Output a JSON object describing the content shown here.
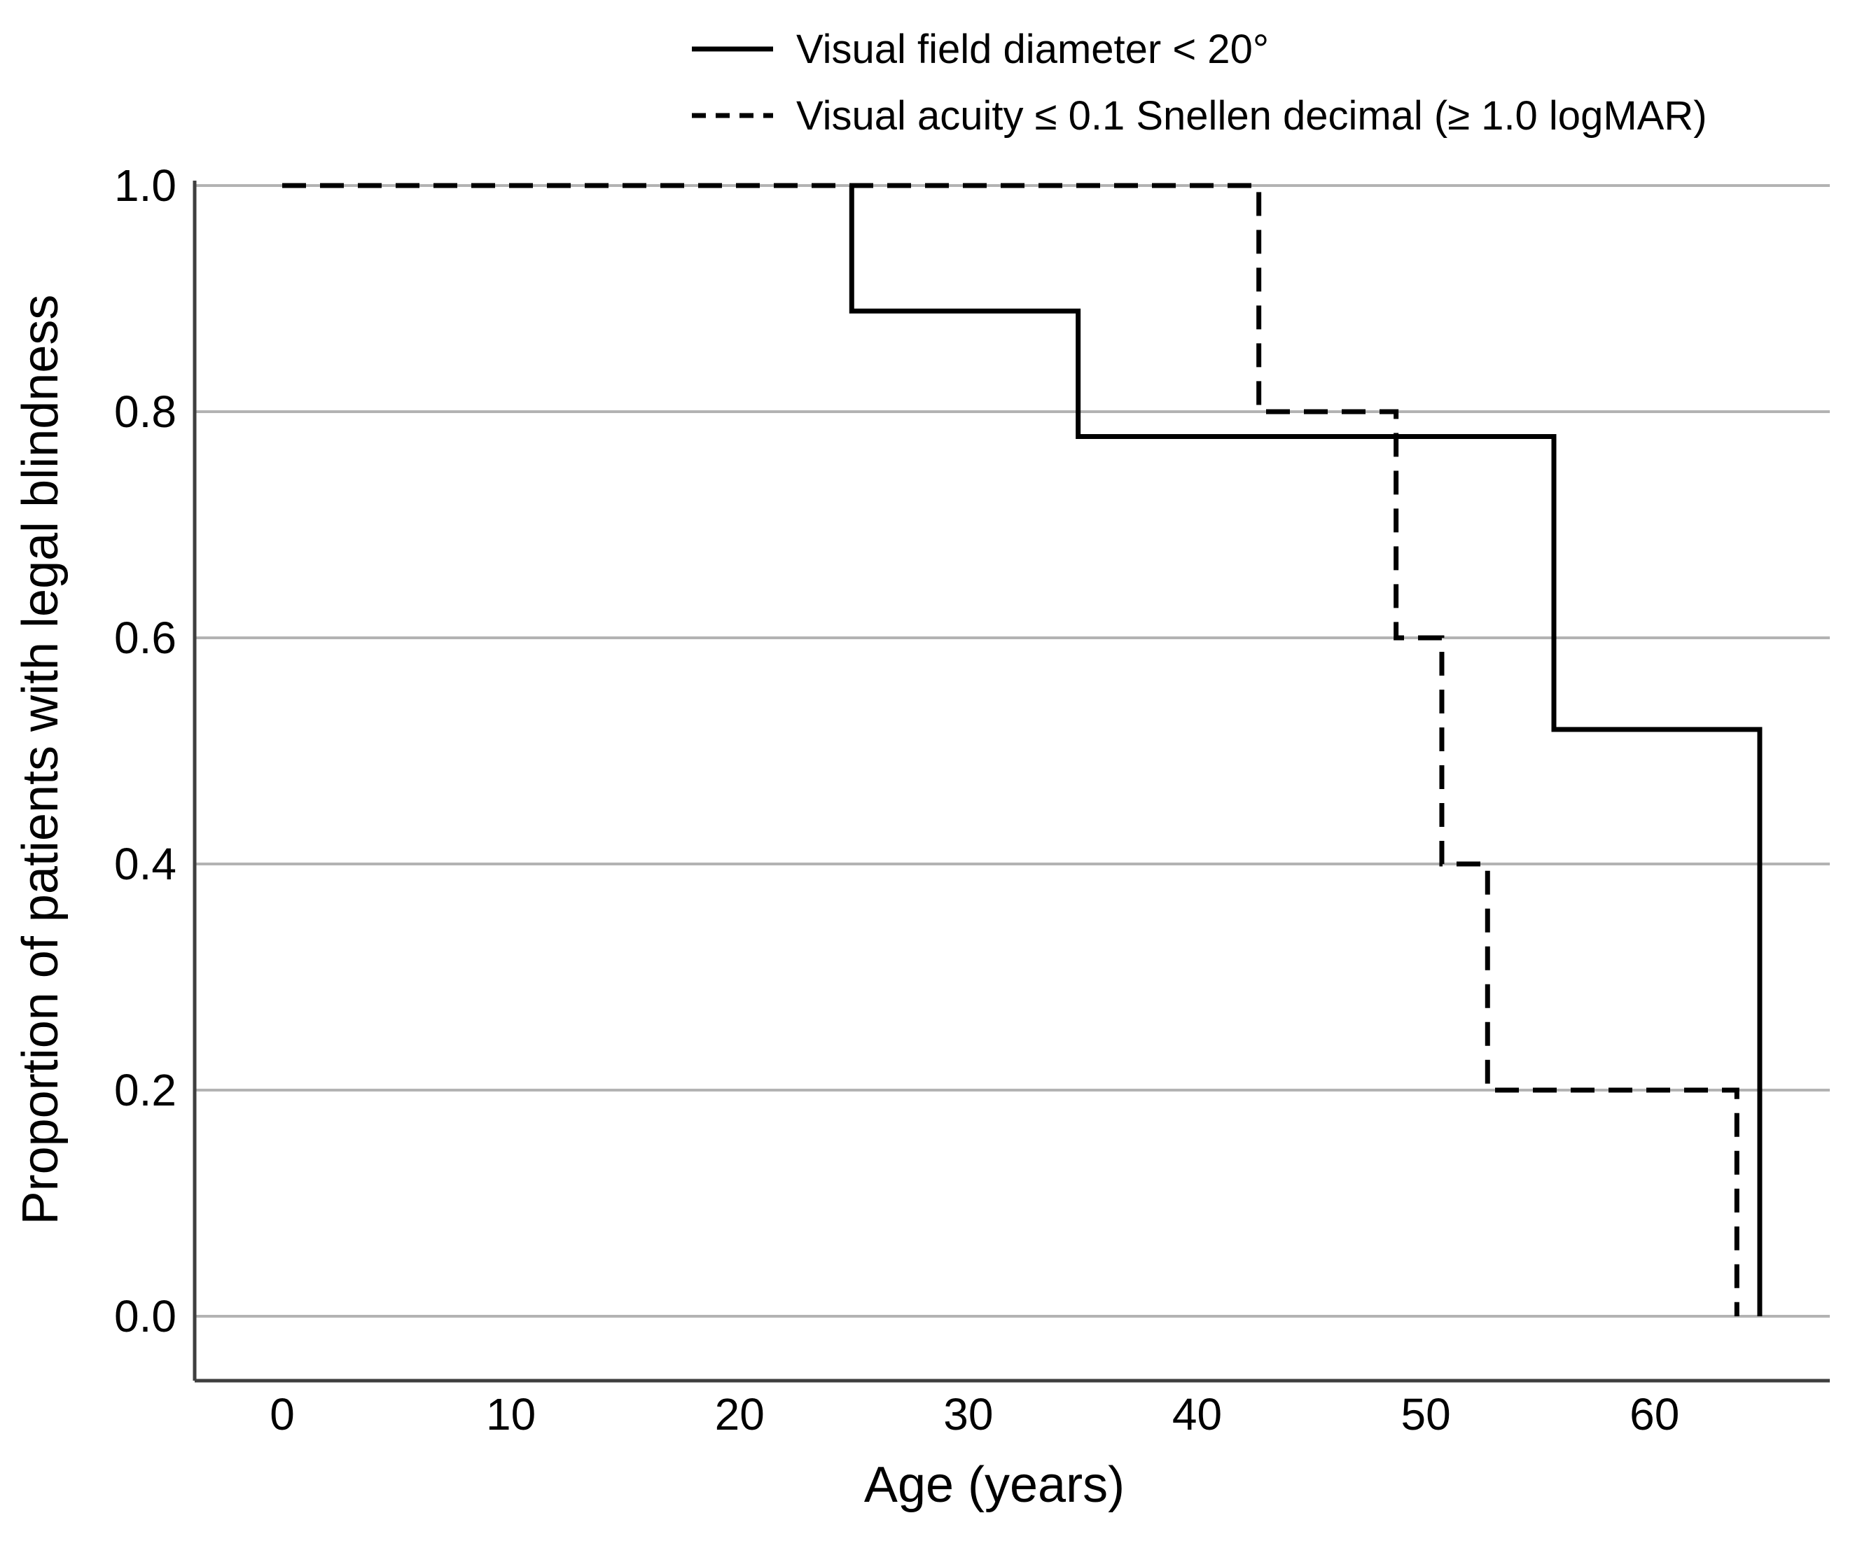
{
  "figure": {
    "background": "#ffffff",
    "text_color": "#000000",
    "gridline_color": "#b3b3b3",
    "axis_color": "#3f3f3f",
    "curve_color": "#000000"
  },
  "legend": {
    "position": "top",
    "items": [
      {
        "label": "Visual field diameter < 20°",
        "line_style": "solid"
      },
      {
        "label": "Visual acuity ≤ 0.1 Snellen decimal (≥ 1.0 logMAR)",
        "line_style": "dashed"
      }
    ]
  },
  "chart_data": {
    "type": "line",
    "subtype": "kaplan-meier-step",
    "title": "",
    "xlabel": "Age (years)",
    "ylabel": "Proportion of patients with legal blindness",
    "grid": "horizontal",
    "xlim": [
      -3.8,
      67.7
    ],
    "ylim": [
      -0.06,
      1.005
    ],
    "x_ticks": [
      {
        "label": "0",
        "value": 0
      },
      {
        "label": "10",
        "value": 10
      },
      {
        "label": "20",
        "value": 20
      },
      {
        "label": "30",
        "value": 30
      },
      {
        "label": "40",
        "value": 40
      },
      {
        "label": "50",
        "value": 50
      },
      {
        "label": "60",
        "value": 60
      }
    ],
    "y_ticks": [
      {
        "label": "1.0",
        "value": 1.0
      },
      {
        "label": "0.8",
        "value": 0.8
      },
      {
        "label": "0.6",
        "value": 0.6
      },
      {
        "label": "0.4",
        "value": 0.4
      },
      {
        "label": "0.2",
        "value": 0.2
      },
      {
        "label": "0.0",
        "value": 0.0
      }
    ],
    "series": [
      {
        "name": "Visual field diameter < 20°",
        "line_style": "solid",
        "start_proportion": 1.0,
        "visible_from_age": 24.9,
        "steps": [
          {
            "age": 24.9,
            "drop_to": 0.889
          },
          {
            "age": 34.8,
            "drop_to": 0.778
          },
          {
            "age": 55.6,
            "drop_to": 0.519
          },
          {
            "age": 64.6,
            "drop_to": 0.0
          }
        ]
      },
      {
        "name": "Visual acuity ≤ 0.1 Snellen decimal (≥ 1.0 logMAR)",
        "line_style": "dashed",
        "start_proportion": 1.0,
        "visible_from_age": 0,
        "steps": [
          {
            "age": 42.7,
            "drop_to": 0.8
          },
          {
            "age": 48.7,
            "drop_to": 0.6
          },
          {
            "age": 50.7,
            "drop_to": 0.4
          },
          {
            "age": 52.7,
            "drop_to": 0.2
          },
          {
            "age": 63.6,
            "drop_to": 0.0
          }
        ]
      }
    ]
  }
}
